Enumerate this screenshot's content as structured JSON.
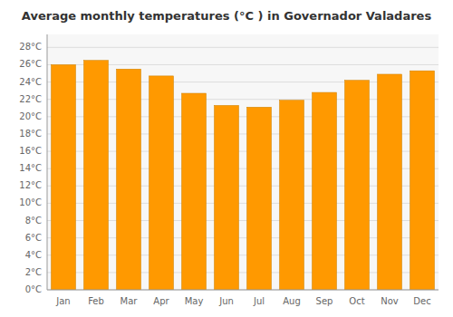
{
  "chart_data": {
    "type": "bar",
    "title": "Average monthly temperatures (°C ) in Governador Valadares",
    "categories": [
      "Jan",
      "Feb",
      "Mar",
      "Apr",
      "May",
      "Jun",
      "Jul",
      "Aug",
      "Sep",
      "Oct",
      "Nov",
      "Dec"
    ],
    "values": [
      26.0,
      26.5,
      25.5,
      24.7,
      22.7,
      21.3,
      21.1,
      21.9,
      22.8,
      24.2,
      24.9,
      25.3
    ],
    "color": "#FF9900",
    "ylim": [
      0,
      29.5
    ],
    "yticks": [
      {
        "value": 0,
        "label": "0°C"
      },
      {
        "value": 2,
        "label": "2°C"
      },
      {
        "value": 4,
        "label": "4°C"
      },
      {
        "value": 6,
        "label": "6°C"
      },
      {
        "value": 8,
        "label": "8°C"
      },
      {
        "value": 10,
        "label": "10°C"
      },
      {
        "value": 12,
        "label": "12°C"
      },
      {
        "value": 14,
        "label": "14°C"
      },
      {
        "value": 16,
        "label": "16°C"
      },
      {
        "value": 18,
        "label": "18°C"
      },
      {
        "value": 20,
        "label": "20°C"
      },
      {
        "value": 22,
        "label": "22°C"
      },
      {
        "value": 24,
        "label": "24°C"
      },
      {
        "value": 26,
        "label": "26°C"
      },
      {
        "value": 28,
        "label": "28°C"
      }
    ],
    "grid": true
  }
}
